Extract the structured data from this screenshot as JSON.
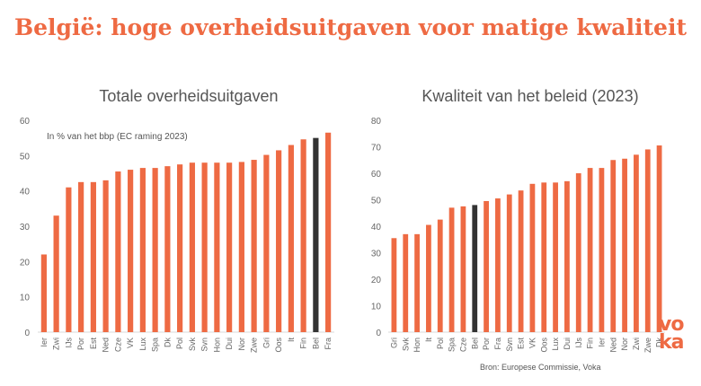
{
  "title": "België: hoge overheidsuitgaven voor matige kwaliteit",
  "source": "Bron: Europese Commissie, Voka",
  "logo_text": "voka",
  "colors": {
    "accent": "#ee6a43",
    "highlight": "#333333",
    "bar": "#ee6a43"
  },
  "chart_data": [
    {
      "type": "bar",
      "title": "Totale overheidsuitgaven",
      "subtitle": "In % van het bbp (EC raming 2023)",
      "categories": [
        "Ier",
        "Zwi",
        "IJs",
        "Por",
        "Est",
        "Ned",
        "Cze",
        "VK",
        "Lux",
        "Spa",
        "Dk",
        "Pol",
        "Svk",
        "Svn",
        "Hon",
        "Dui",
        "Nor",
        "Zwe",
        "Gri",
        "Oos",
        "It",
        "Fin",
        "Bel",
        "Fra"
      ],
      "values": [
        22,
        33,
        41,
        42.5,
        42.5,
        43,
        45.5,
        46,
        46.5,
        46.5,
        47,
        47.5,
        48,
        48,
        48,
        48,
        48.2,
        48.8,
        50.2,
        51.5,
        53,
        54.6,
        55,
        56.5
      ],
      "highlight": "Bel",
      "ylim": [
        0,
        60
      ],
      "yticks": [
        0,
        10,
        20,
        30,
        40,
        50,
        60
      ],
      "grid": false
    },
    {
      "type": "bar",
      "title": "Kwaliteit van het beleid (2023)",
      "categories": [
        "Gri",
        "Svk",
        "Hon",
        "It",
        "Pol",
        "Spa",
        "Cze",
        "Bel",
        "Por",
        "Fra",
        "Svn",
        "Est",
        "VK",
        "Oos",
        "Lux",
        "Dui",
        "IJs",
        "Fin",
        "Ier",
        "Ned",
        "Nor",
        "Zwi",
        "Zwe",
        "Dk"
      ],
      "values": [
        35.5,
        37,
        37,
        40.5,
        42.5,
        47,
        47.5,
        48,
        49.5,
        50.5,
        52,
        53.5,
        56,
        56.5,
        56.5,
        57,
        60,
        62,
        62,
        65,
        65.5,
        67,
        69,
        70.5
      ],
      "highlight": "Bel",
      "ylim": [
        0,
        80
      ],
      "yticks": [
        0,
        10,
        20,
        30,
        40,
        50,
        60,
        70,
        80
      ],
      "grid": false
    }
  ]
}
